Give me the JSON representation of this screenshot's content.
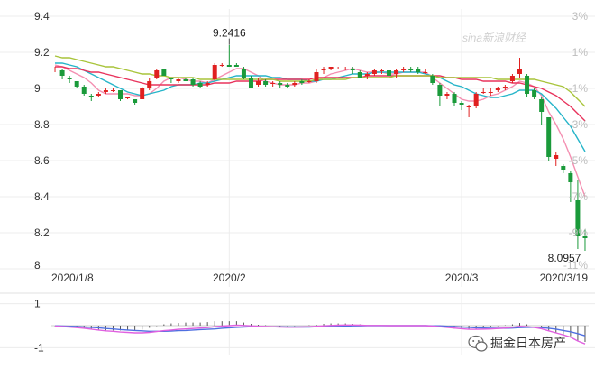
{
  "brand": {
    "logo_text": "sina新浪财经"
  },
  "watermark": {
    "text": "掘金日本房产",
    "icon": "wechat-icon"
  },
  "colors": {
    "up": "#e02020",
    "down": "#1a9a3a",
    "ma5": "#f48fb1",
    "ma10": "#26b5c9",
    "ma20": "#e8335c",
    "ma30": "#a8c43a",
    "macd_dif": "#e060e0",
    "macd_dea": "#4f6fe0",
    "bar": "#555555",
    "grid": "#ececec"
  },
  "chart_data": [
    {
      "type": "candlestick",
      "y_ticks": [
        "9.4",
        "9.2",
        "9",
        "8.8",
        "8.6",
        "8.4",
        "8.2",
        "8"
      ],
      "y_right_ticks": [
        "3%",
        "1%",
        "-1%",
        "-3%",
        "-5%",
        "-7%",
        "-9%",
        "-11%"
      ],
      "ylim": [
        8.0,
        9.4
      ],
      "x_tick_labels": [
        "2020/1/8",
        "2020/2",
        "2020/3",
        "2020/3/19"
      ],
      "annotations": [
        {
          "text": "9.2416",
          "value": 9.2416,
          "kind": "max"
        },
        {
          "text": "8.0957",
          "value": 8.0957,
          "kind": "min"
        }
      ],
      "grid": true,
      "candles": [
        [
          9.11,
          9.12,
          9.09,
          9.11
        ],
        [
          9.1,
          9.11,
          9.05,
          9.07
        ],
        [
          9.06,
          9.07,
          9.03,
          9.05
        ],
        [
          9.04,
          9.04,
          9.0,
          9.01
        ],
        [
          9.01,
          9.02,
          8.96,
          8.97
        ],
        [
          8.96,
          8.97,
          8.93,
          8.95
        ],
        [
          8.96,
          8.98,
          8.95,
          8.97
        ],
        [
          8.98,
          9.0,
          8.97,
          8.99
        ],
        [
          8.99,
          9.0,
          8.98,
          8.99
        ],
        [
          8.99,
          8.99,
          8.93,
          8.94
        ],
        [
          8.95,
          8.95,
          8.94,
          8.95
        ],
        [
          8.94,
          8.94,
          8.91,
          8.92
        ],
        [
          8.94,
          9.01,
          8.94,
          9.0
        ],
        [
          9.0,
          9.06,
          8.99,
          9.04
        ],
        [
          9.06,
          9.11,
          9.05,
          9.1
        ],
        [
          9.11,
          9.11,
          9.07,
          9.07
        ],
        [
          9.06,
          9.06,
          9.03,
          9.05
        ],
        [
          9.04,
          9.06,
          9.03,
          9.05
        ],
        [
          9.05,
          9.06,
          9.04,
          9.04
        ],
        [
          9.05,
          9.06,
          9.01,
          9.02
        ],
        [
          9.03,
          9.04,
          9.0,
          9.01
        ],
        [
          9.02,
          9.04,
          9.01,
          9.03
        ],
        [
          9.05,
          9.14,
          9.04,
          9.13
        ],
        [
          9.13,
          9.14,
          9.12,
          9.13
        ],
        [
          9.13,
          9.24,
          9.12,
          9.12
        ],
        [
          9.13,
          9.14,
          9.12,
          9.12
        ],
        [
          9.11,
          9.12,
          9.05,
          9.06
        ],
        [
          9.06,
          9.07,
          9.0,
          9.0
        ],
        [
          9.02,
          9.06,
          9.01,
          9.04
        ],
        [
          9.04,
          9.05,
          9.01,
          9.02
        ],
        [
          9.03,
          9.04,
          9.01,
          9.03
        ],
        [
          9.03,
          9.04,
          9.0,
          9.02
        ],
        [
          9.02,
          9.03,
          9.0,
          9.01
        ],
        [
          9.02,
          9.04,
          9.01,
          9.03
        ],
        [
          9.04,
          9.05,
          9.02,
          9.03
        ],
        [
          9.04,
          9.05,
          9.03,
          9.04
        ],
        [
          9.04,
          9.11,
          9.03,
          9.09
        ],
        [
          9.1,
          9.12,
          9.08,
          9.11
        ],
        [
          9.11,
          9.12,
          9.1,
          9.12
        ],
        [
          9.11,
          9.12,
          9.11,
          9.11
        ],
        [
          9.11,
          9.12,
          9.1,
          9.11
        ],
        [
          9.11,
          9.12,
          9.08,
          9.1
        ],
        [
          9.09,
          9.1,
          9.06,
          9.06
        ],
        [
          9.07,
          9.09,
          9.05,
          9.08
        ],
        [
          9.08,
          9.11,
          9.07,
          9.1
        ],
        [
          9.1,
          9.11,
          9.08,
          9.1
        ],
        [
          9.1,
          9.12,
          9.06,
          9.07
        ],
        [
          9.08,
          9.11,
          9.06,
          9.1
        ],
        [
          9.1,
          9.12,
          9.09,
          9.11
        ],
        [
          9.11,
          9.12,
          9.09,
          9.1
        ],
        [
          9.11,
          9.12,
          9.08,
          9.09
        ],
        [
          9.09,
          9.11,
          9.08,
          9.09
        ],
        [
          9.07,
          9.08,
          9.02,
          9.03
        ],
        [
          9.02,
          9.03,
          8.9,
          8.96
        ],
        [
          8.96,
          8.98,
          8.94,
          8.97
        ],
        [
          8.97,
          8.98,
          8.9,
          8.92
        ],
        [
          8.92,
          8.93,
          8.88,
          8.91
        ],
        [
          8.9,
          8.91,
          8.84,
          8.9
        ],
        [
          8.9,
          8.98,
          8.89,
          8.97
        ],
        [
          8.98,
          9.0,
          8.97,
          8.98
        ],
        [
          8.98,
          9.0,
          8.96,
          8.98
        ],
        [
          8.99,
          9.01,
          8.98,
          9.0
        ],
        [
          9.0,
          9.02,
          8.99,
          9.01
        ],
        [
          9.04,
          9.08,
          9.03,
          9.07
        ],
        [
          9.08,
          9.17,
          9.06,
          9.11
        ],
        [
          9.07,
          9.08,
          8.95,
          8.97
        ],
        [
          8.99,
          9.0,
          8.94,
          8.95
        ],
        [
          8.94,
          8.95,
          8.8,
          8.87
        ],
        [
          8.84,
          8.84,
          8.6,
          8.62
        ],
        [
          8.61,
          8.65,
          8.57,
          8.63
        ],
        [
          8.57,
          8.58,
          8.53,
          8.55
        ],
        [
          8.53,
          8.54,
          8.37,
          8.48
        ],
        [
          8.38,
          8.49,
          8.11,
          8.18
        ],
        [
          8.18,
          8.22,
          8.1,
          8.17
        ]
      ],
      "moving_averages": [
        {
          "name": "MA5",
          "values": [
            9.13,
            9.12,
            9.1,
            9.08,
            9.06,
            9.03,
            8.99,
            8.97,
            8.97,
            8.97,
            8.97,
            8.96,
            8.96,
            8.97,
            9.0,
            9.04,
            9.06,
            9.06,
            9.05,
            9.04,
            9.04,
            9.03,
            9.05,
            9.07,
            9.09,
            9.11,
            9.11,
            9.09,
            9.07,
            9.04,
            9.03,
            9.02,
            9.02,
            9.02,
            9.03,
            9.03,
            9.04,
            9.06,
            9.08,
            9.09,
            9.1,
            9.11,
            9.1,
            9.09,
            9.09,
            9.09,
            9.08,
            9.08,
            9.09,
            9.09,
            9.09,
            9.09,
            9.06,
            9.03,
            9.0,
            8.97,
            8.94,
            8.93,
            8.93,
            8.94,
            8.96,
            8.97,
            8.99,
            9.01,
            9.04,
            9.03,
            9.01,
            8.96,
            8.87,
            8.8,
            8.72,
            8.62,
            8.51,
            8.4
          ]
        },
        {
          "name": "MA10",
          "values": [
            9.14,
            9.14,
            9.13,
            9.12,
            9.1,
            9.08,
            9.06,
            9.04,
            9.02,
            9.0,
            8.98,
            8.97,
            8.96,
            8.97,
            8.98,
            8.99,
            9.01,
            9.02,
            9.02,
            9.02,
            9.03,
            9.03,
            9.04,
            9.05,
            9.06,
            9.07,
            9.07,
            9.07,
            9.07,
            9.07,
            9.06,
            9.06,
            9.05,
            9.05,
            9.05,
            9.04,
            9.04,
            9.05,
            9.05,
            9.06,
            9.07,
            9.08,
            9.08,
            9.08,
            9.09,
            9.09,
            9.09,
            9.09,
            9.09,
            9.09,
            9.09,
            9.08,
            9.07,
            9.06,
            9.04,
            9.02,
            9.01,
            8.99,
            8.97,
            8.96,
            8.95,
            8.95,
            8.96,
            8.97,
            8.99,
            8.99,
            8.99,
            8.97,
            8.93,
            8.89,
            8.84,
            8.79,
            8.72,
            8.65
          ]
        },
        {
          "name": "MA20",
          "values": [
            9.12,
            9.12,
            9.11,
            9.11,
            9.1,
            9.09,
            9.09,
            9.08,
            9.07,
            9.06,
            9.05,
            9.04,
            9.03,
            9.02,
            9.02,
            9.02,
            9.02,
            9.02,
            9.02,
            9.02,
            9.02,
            9.02,
            9.03,
            9.03,
            9.03,
            9.04,
            9.04,
            9.04,
            9.04,
            9.05,
            9.05,
            9.05,
            9.05,
            9.05,
            9.05,
            9.05,
            9.06,
            9.06,
            9.06,
            9.06,
            9.06,
            9.06,
            9.06,
            9.07,
            9.07,
            9.07,
            9.07,
            9.07,
            9.07,
            9.07,
            9.07,
            9.07,
            9.07,
            9.07,
            9.06,
            9.06,
            9.05,
            9.05,
            9.05,
            9.04,
            9.04,
            9.04,
            9.04,
            9.03,
            9.03,
            9.02,
            9.01,
            9.0,
            8.98,
            8.96,
            8.93,
            8.9,
            8.86,
            8.82
          ]
        },
        {
          "name": "MA30",
          "values": [
            9.18,
            9.17,
            9.17,
            9.16,
            9.15,
            9.14,
            9.13,
            9.12,
            9.12,
            9.11,
            9.1,
            9.09,
            9.08,
            9.08,
            9.07,
            9.07,
            9.06,
            9.06,
            9.06,
            9.06,
            9.05,
            9.05,
            9.05,
            9.05,
            9.05,
            9.05,
            9.05,
            9.05,
            9.05,
            9.05,
            9.05,
            9.04,
            9.04,
            9.04,
            9.04,
            9.04,
            9.05,
            9.05,
            9.05,
            9.05,
            9.05,
            9.06,
            9.06,
            9.06,
            9.06,
            9.06,
            9.06,
            9.07,
            9.07,
            9.07,
            9.07,
            9.07,
            9.07,
            9.06,
            9.06,
            9.06,
            9.06,
            9.06,
            9.06,
            9.06,
            9.06,
            9.05,
            9.05,
            9.05,
            9.05,
            9.05,
            9.05,
            9.04,
            9.03,
            9.02,
            9.01,
            8.98,
            8.94,
            8.9
          ]
        }
      ]
    },
    {
      "type": "macd",
      "y_ticks": [
        "1",
        "-1"
      ],
      "ylim": [
        -1.15,
        1.15
      ],
      "dif": [
        -0.02,
        -0.04,
        -0.06,
        -0.09,
        -0.12,
        -0.16,
        -0.2,
        -0.24,
        -0.26,
        -0.29,
        -0.31,
        -0.33,
        -0.33,
        -0.31,
        -0.27,
        -0.23,
        -0.2,
        -0.17,
        -0.15,
        -0.13,
        -0.11,
        -0.09,
        -0.05,
        -0.02,
        0.0,
        0.02,
        0.01,
        -0.01,
        -0.03,
        -0.04,
        -0.05,
        -0.06,
        -0.07,
        -0.07,
        -0.06,
        -0.05,
        -0.03,
        -0.01,
        0.01,
        0.02,
        0.03,
        0.03,
        0.02,
        0.01,
        0.01,
        0.01,
        0.0,
        0.0,
        0.0,
        0.0,
        0.0,
        0.0,
        -0.02,
        -0.05,
        -0.08,
        -0.11,
        -0.14,
        -0.17,
        -0.17,
        -0.16,
        -0.15,
        -0.13,
        -0.11,
        -0.08,
        -0.03,
        -0.05,
        -0.08,
        -0.14,
        -0.24,
        -0.33,
        -0.42,
        -0.52,
        -0.7,
        -0.83
      ],
      "dea": [
        -0.01,
        -0.02,
        -0.03,
        -0.04,
        -0.06,
        -0.08,
        -0.1,
        -0.13,
        -0.15,
        -0.18,
        -0.2,
        -0.22,
        -0.24,
        -0.26,
        -0.26,
        -0.26,
        -0.25,
        -0.23,
        -0.22,
        -0.2,
        -0.18,
        -0.17,
        -0.15,
        -0.12,
        -0.1,
        -0.08,
        -0.06,
        -0.05,
        -0.05,
        -0.05,
        -0.05,
        -0.05,
        -0.06,
        -0.06,
        -0.06,
        -0.06,
        -0.05,
        -0.05,
        -0.04,
        -0.03,
        -0.02,
        -0.01,
        -0.01,
        0.0,
        0.0,
        0.0,
        0.0,
        0.0,
        0.0,
        0.0,
        0.0,
        0.0,
        -0.01,
        -0.01,
        -0.03,
        -0.04,
        -0.06,
        -0.08,
        -0.1,
        -0.11,
        -0.12,
        -0.12,
        -0.12,
        -0.11,
        -0.09,
        -0.08,
        -0.08,
        -0.09,
        -0.12,
        -0.16,
        -0.22,
        -0.28,
        -0.36,
        -0.46
      ],
      "histogram": [
        -0.02,
        -0.04,
        -0.06,
        -0.1,
        -0.12,
        -0.16,
        -0.2,
        -0.22,
        -0.22,
        -0.22,
        -0.22,
        -0.22,
        -0.18,
        -0.1,
        -0.02,
        0.06,
        0.1,
        0.12,
        0.14,
        0.14,
        0.14,
        0.16,
        0.2,
        0.2,
        0.2,
        0.2,
        0.14,
        0.08,
        0.04,
        0.02,
        0.0,
        -0.02,
        -0.02,
        -0.02,
        0.0,
        0.02,
        0.04,
        0.08,
        0.1,
        0.1,
        0.1,
        0.08,
        0.06,
        0.02,
        0.02,
        0.02,
        0.0,
        0.0,
        0.0,
        0.0,
        0.0,
        0.0,
        -0.02,
        -0.08,
        -0.1,
        -0.14,
        -0.16,
        -0.18,
        -0.14,
        -0.1,
        -0.06,
        -0.02,
        0.02,
        0.06,
        0.12,
        0.06,
        0.0,
        -0.1,
        -0.24,
        -0.34,
        -0.4,
        -0.48,
        -0.68,
        -0.74
      ]
    }
  ]
}
